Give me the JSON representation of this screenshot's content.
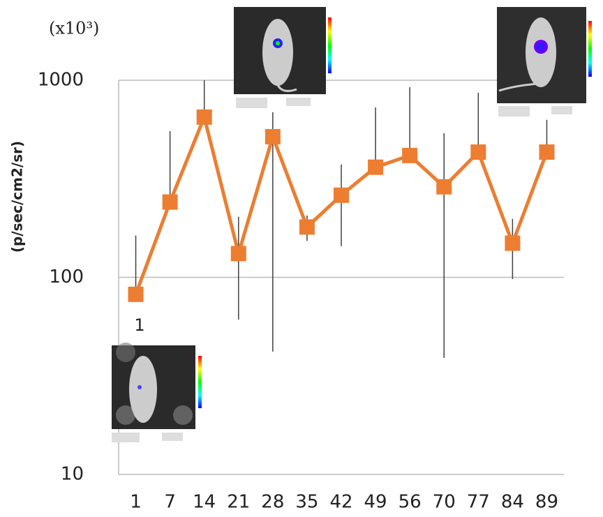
{
  "chart_data": {
    "type": "line",
    "unit_note": "(x10³)",
    "y_label": "(p/sec/cm2/sr)",
    "annotation": "1",
    "categories": [
      "1",
      "7",
      "14",
      "21",
      "28",
      "35",
      "42",
      "49",
      "56",
      "70",
      "77",
      "84",
      "89"
    ],
    "series": [
      {
        "color": "#ED7D31",
        "values": [
          82,
          241,
          650,
          132,
          517,
          180,
          261,
          362,
          415,
          288,
          432,
          149,
          432
        ],
        "err_high": [
          163,
          552,
          1000,
          203,
          688,
          206,
          374,
          728,
          922,
          539,
          864,
          198,
          630
        ],
        "err_low": [
          null,
          null,
          null,
          61,
          42,
          153,
          144,
          null,
          null,
          39,
          null,
          98,
          null
        ]
      }
    ],
    "log_y": true,
    "ylim": [
      10,
      1000
    ],
    "yticks": [
      10,
      100,
      1000
    ],
    "grid": true
  }
}
